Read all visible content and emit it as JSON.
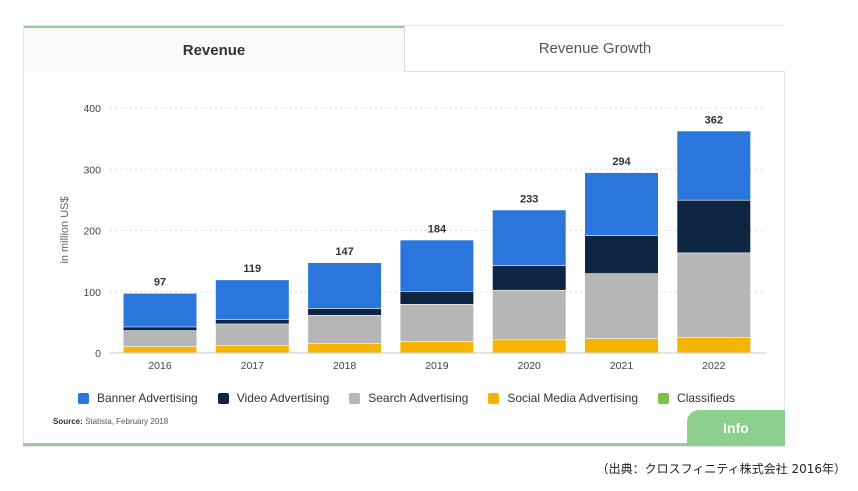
{
  "tabs": {
    "revenue": "Revenue",
    "revenue_growth": "Revenue Growth"
  },
  "source": {
    "label": "Source:",
    "text": "Statista, February 2018"
  },
  "info_button": "Info",
  "caption": "（出典：クロスフィニティ株式会社 2016年）",
  "colors": {
    "banner": "#2a76dc",
    "video": "#0e2542",
    "search": "#b6b6b6",
    "social": "#f5b400",
    "classifieds": "#7dc242",
    "accent": "#8dcf8d"
  },
  "chart_data": {
    "type": "bar",
    "stacked": true,
    "ylabel": "in million US$",
    "xlabel": "",
    "ylim": [
      0,
      400
    ],
    "yticks": [
      0,
      100,
      200,
      300,
      400
    ],
    "grid": true,
    "legend_position": "bottom",
    "categories": [
      "2016",
      "2017",
      "2018",
      "2019",
      "2020",
      "2021",
      "2022"
    ],
    "totals": [
      97,
      119,
      147,
      184,
      233,
      294,
      362
    ],
    "series": [
      {
        "name": "Social Media Advertising",
        "color": "#f5b400",
        "values": [
          10,
          12,
          15,
          18,
          21,
          23,
          25
        ]
      },
      {
        "name": "Search Advertising",
        "color": "#b6b6b6",
        "values": [
          26,
          35,
          46,
          61,
          81,
          106,
          138
        ]
      },
      {
        "name": "Video Advertising",
        "color": "#0e2542",
        "values": [
          6,
          7,
          11,
          21,
          40,
          62,
          86
        ]
      },
      {
        "name": "Banner Advertising",
        "color": "#2a76dc",
        "values": [
          55,
          65,
          75,
          84,
          91,
          103,
          113
        ]
      },
      {
        "name": "Classifieds",
        "color": "#7dc242",
        "values": [
          0,
          0,
          0,
          0,
          0,
          0,
          0
        ]
      }
    ],
    "legend_order": [
      "Banner Advertising",
      "Video Advertising",
      "Search Advertising",
      "Social Media Advertising",
      "Classifieds"
    ]
  }
}
